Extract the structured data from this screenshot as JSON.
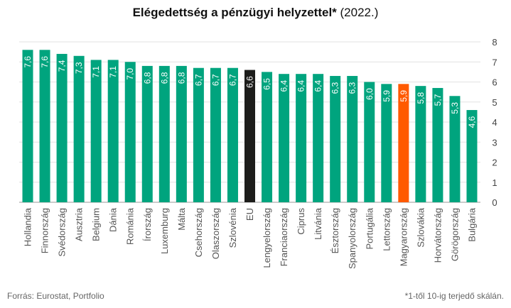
{
  "header": {
    "title_bold": "Elégedettség a pénzügyi helyzettel*",
    "title_rest": " (2022.)"
  },
  "footer": {
    "source": "Forrás: Eurostat, Portfolio",
    "note": "*1-től 10-ig terjedő skálán."
  },
  "colors": {
    "default": "#00A47E",
    "eu": "#1d1d1b",
    "highlight": "#FF5A00",
    "label": "#ffffff",
    "axis_text": "#444444",
    "category_text": "#555555"
  },
  "chart_data": {
    "type": "bar",
    "title": "Elégedettség a pénzügyi helyzettel* (2022.)",
    "categories": [
      "Hollandia",
      "Finnország",
      "Svédország",
      "Ausztria",
      "Belgium",
      "Dánia",
      "Románia",
      "Írország",
      "Luxemburg",
      "Málta",
      "Csehország",
      "Olaszország",
      "Szlovénia",
      "EU",
      "Lengyelország",
      "Franciaország",
      "Ciprus",
      "Litvánia",
      "Észtország",
      "Spanyolország",
      "Portugália",
      "Lettország",
      "Magyarország",
      "Szlovákia",
      "Horvátország",
      "Görögország",
      "Bulgária"
    ],
    "values": [
      7.6,
      7.6,
      7.4,
      7.3,
      7.1,
      7.1,
      7.0,
      6.8,
      6.8,
      6.8,
      6.7,
      6.7,
      6.7,
      6.6,
      6.5,
      6.4,
      6.4,
      6.4,
      6.3,
      6.3,
      6.0,
      5.9,
      5.9,
      5.8,
      5.7,
      5.3,
      4.6
    ],
    "value_labels": [
      "7,6",
      "7,6",
      "7,4",
      "7,3",
      "7,1",
      "7,1",
      "7,0",
      "6,8",
      "6,8",
      "6,8",
      "6,7",
      "6,7",
      "6,7",
      "6,6",
      "6,5",
      "6,4",
      "6,4",
      "6,4",
      "6,3",
      "6,3",
      "6,0",
      "5,9",
      "5,9",
      "5,8",
      "5,7",
      "5,3",
      "4,6"
    ],
    "highlight": {
      "EU": "eu",
      "Magyarország": "highlight"
    },
    "yticks": [
      0,
      1,
      2,
      3,
      4,
      5,
      6,
      7,
      8
    ],
    "ylim": [
      0,
      8
    ],
    "y_axis_side": "right",
    "grid": true,
    "xlabel": "",
    "ylabel": ""
  }
}
